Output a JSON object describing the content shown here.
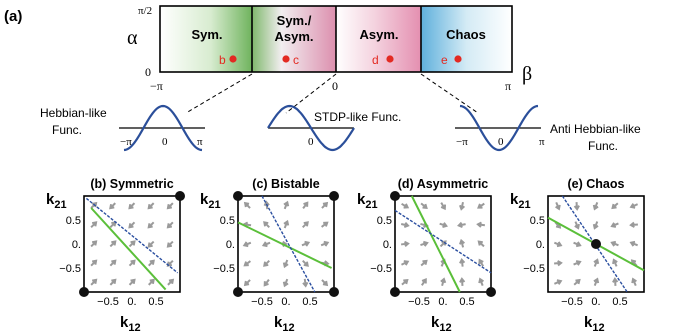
{
  "panel_a": {
    "label": "(a)",
    "y_axis_symbol": "α",
    "y_top_tick": "π/2",
    "y_zero_tick": "0",
    "x_axis_symbol": "β",
    "x_ticks": [
      "−π",
      "0",
      "π"
    ],
    "regions": [
      {
        "label_lines": [
          "Sym."
        ],
        "point": "b",
        "color": "#7fbf6a"
      },
      {
        "label_lines": [
          "Sym./",
          "Asym."
        ],
        "point": "c",
        "color": "#d98aa6"
      },
      {
        "label_lines": [
          "Asym."
        ],
        "point": "d",
        "color": "#e79ab6"
      },
      {
        "label_lines": [
          "Chaos"
        ],
        "point": "e",
        "color": "#66b5de"
      }
    ],
    "point_color": "#e32a22",
    "functions": [
      {
        "label_lines": [
          "Hebbian-like",
          "Func."
        ]
      },
      {
        "label_lines": [
          "STDP-like Func."
        ]
      },
      {
        "label_lines": [
          "Anti Hebbian-like",
          "Func."
        ]
      }
    ],
    "function_ticks": [
      "−π",
      "0",
      "π"
    ],
    "curve_color": "#2b4f9a"
  },
  "flow_panels": [
    {
      "title": "(b) Symmetric",
      "y_ticks": [
        "0.5",
        "0.",
        "−0.5"
      ],
      "x_ticks": [
        "−0.5",
        "0.",
        "0.5"
      ],
      "x_label": "k12",
      "y_label": "k21"
    },
    {
      "title": "(c) Bistable",
      "y_ticks": [
        "0.5",
        "0.",
        "−0.5"
      ],
      "x_ticks": [
        "−0.5",
        "0.",
        "0.5"
      ],
      "x_label": "k12",
      "y_label": "k21"
    },
    {
      "title": "(d) Asymmetric",
      "y_ticks": [
        "0.5",
        "0.",
        "−0.5"
      ],
      "x_ticks": [
        "−0.5",
        "0.",
        "0.5"
      ],
      "x_label": "k12",
      "y_label": "k21"
    },
    {
      "title": "(e) Chaos",
      "y_ticks": [
        "0.5",
        "0.",
        "−0.5"
      ],
      "x_ticks": [
        "−0.5",
        "0.",
        "0.5"
      ],
      "x_label": "k12",
      "y_label": "k21"
    }
  ],
  "colors": {
    "nullcline_green": "#5bbf3a",
    "nullcline_blue": "#2b4fa0",
    "arrow_gray": "#9a9a9a",
    "fixed_point": "#111111"
  }
}
